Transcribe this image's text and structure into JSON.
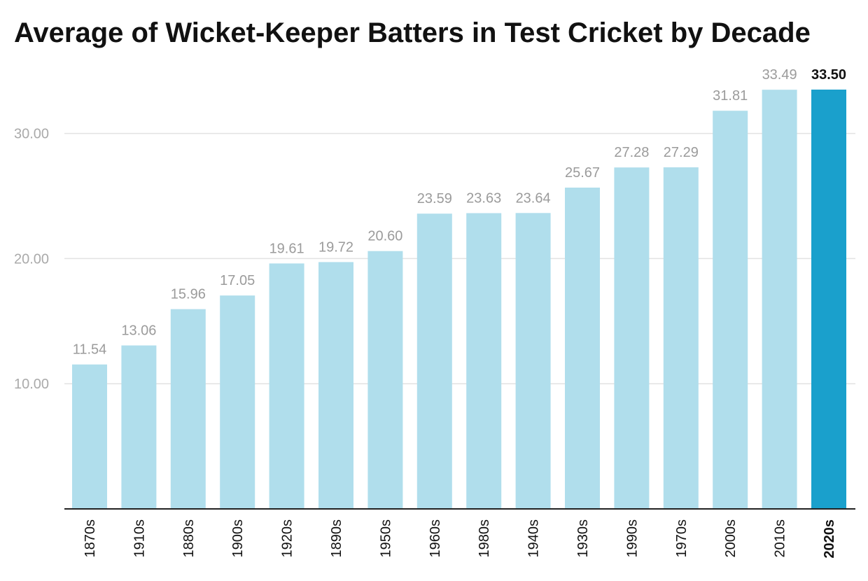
{
  "chart_data": {
    "type": "bar",
    "title": "Average of Wicket-Keeper Batters in Test Cricket by Decade",
    "xlabel": "",
    "ylabel": "",
    "categories": [
      "1870s",
      "1910s",
      "1880s",
      "1900s",
      "1920s",
      "1890s",
      "1950s",
      "1960s",
      "1980s",
      "1940s",
      "1930s",
      "1990s",
      "1970s",
      "2000s",
      "2010s",
      "2020s"
    ],
    "values": [
      11.54,
      13.06,
      15.96,
      17.05,
      19.61,
      19.72,
      20.6,
      23.59,
      23.63,
      23.64,
      25.67,
      27.28,
      27.29,
      31.81,
      33.49,
      33.5
    ],
    "value_labels": [
      "11.54",
      "13.06",
      "15.96",
      "17.05",
      "19.61",
      "19.72",
      "20.60",
      "23.59",
      "23.63",
      "23.64",
      "25.67",
      "27.28",
      "27.29",
      "31.81",
      "33.49",
      "33.50"
    ],
    "ylim": [
      0,
      33.5
    ],
    "yticks": [
      10,
      20,
      30
    ],
    "ytick_labels": [
      "10.00",
      "20.00",
      "30.00"
    ],
    "grid": true,
    "highlight_category": "2020s",
    "colors": {
      "bar": "#b0deec",
      "highlight_bar": "#1aa0cc"
    }
  }
}
